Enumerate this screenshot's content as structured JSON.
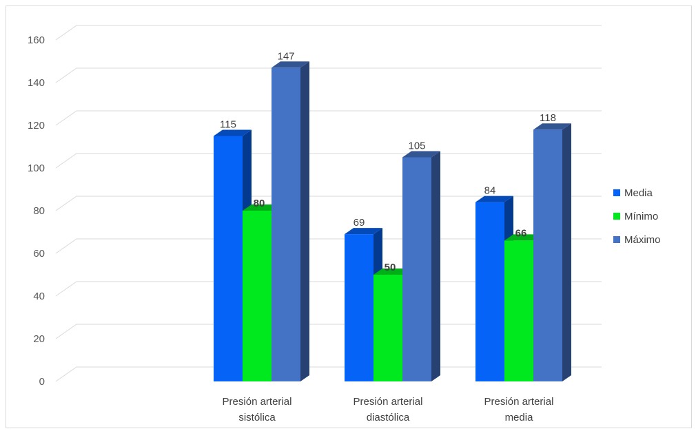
{
  "chart_data": {
    "type": "bar",
    "categories": [
      [
        "Presión arterial",
        "sistólica"
      ],
      [
        "Presión arterial",
        "diastólica"
      ],
      [
        "Presión arterial",
        "media"
      ]
    ],
    "series": [
      {
        "name": "Media",
        "values": [
          115,
          69,
          84
        ],
        "color": "#0563F7",
        "bold_labels": false
      },
      {
        "name": "Mínimo",
        "values": [
          80,
          50,
          66
        ],
        "color": "#00E81E",
        "bold_labels": true
      },
      {
        "name": "Máximo",
        "values": [
          147,
          105,
          118
        ],
        "color": "#4472C4",
        "bold_labels": false
      }
    ],
    "ylim": [
      0,
      160
    ],
    "yticks": [
      0,
      20,
      40,
      60,
      80,
      100,
      120,
      140,
      160
    ],
    "title": "",
    "xlabel": "",
    "ylabel": "",
    "grid": true,
    "legend_position": "right",
    "style": "3d-clustered-column"
  }
}
